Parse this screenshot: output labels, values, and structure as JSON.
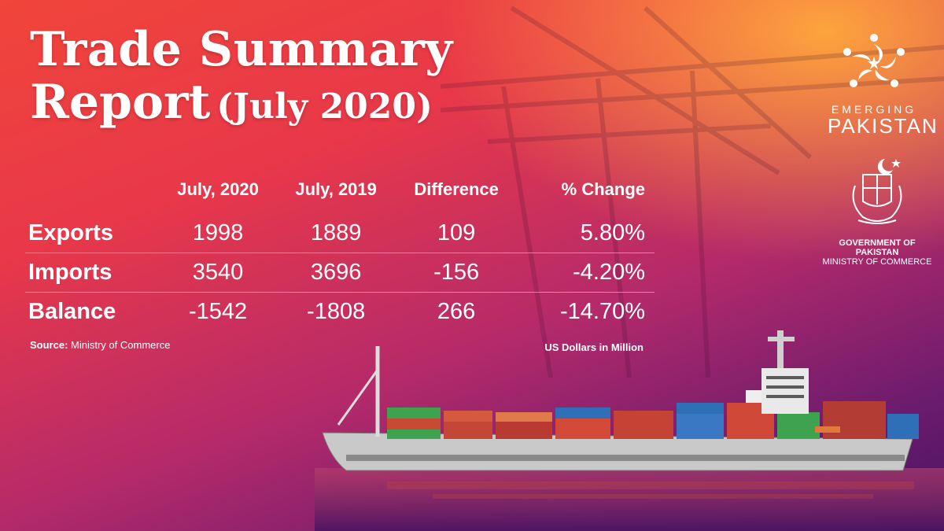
{
  "title": {
    "line1": "Trade Summary",
    "line2": "Report",
    "line2_suffix": "(July 2020)"
  },
  "table": {
    "columns": [
      "July, 2020",
      "July, 2019",
      "Difference",
      "% Change"
    ],
    "rows": [
      {
        "label": "Exports",
        "cells": [
          "1998",
          "1889",
          "109",
          "5.80%"
        ]
      },
      {
        "label": "Imports",
        "cells": [
          "3540",
          "3696",
          "-156",
          "-4.20%"
        ]
      },
      {
        "label": "Balance",
        "cells": [
          "-1542",
          "-1808",
          "266",
          "-14.70%"
        ]
      }
    ]
  },
  "source": {
    "label": "Source:",
    "text": "Ministry of Commerce"
  },
  "units": "US Dollars in Million",
  "logo": {
    "line1": "EMERGING",
    "line2": "PAKISTAN"
  },
  "gov": {
    "line1": "GOVERNMENT OF PAKISTAN",
    "line2": "MINISTRY OF COMMERCE"
  },
  "colors": {
    "accent_orange": "#f7a23c",
    "magenta": "#b42a6a",
    "purple": "#4a1460"
  }
}
